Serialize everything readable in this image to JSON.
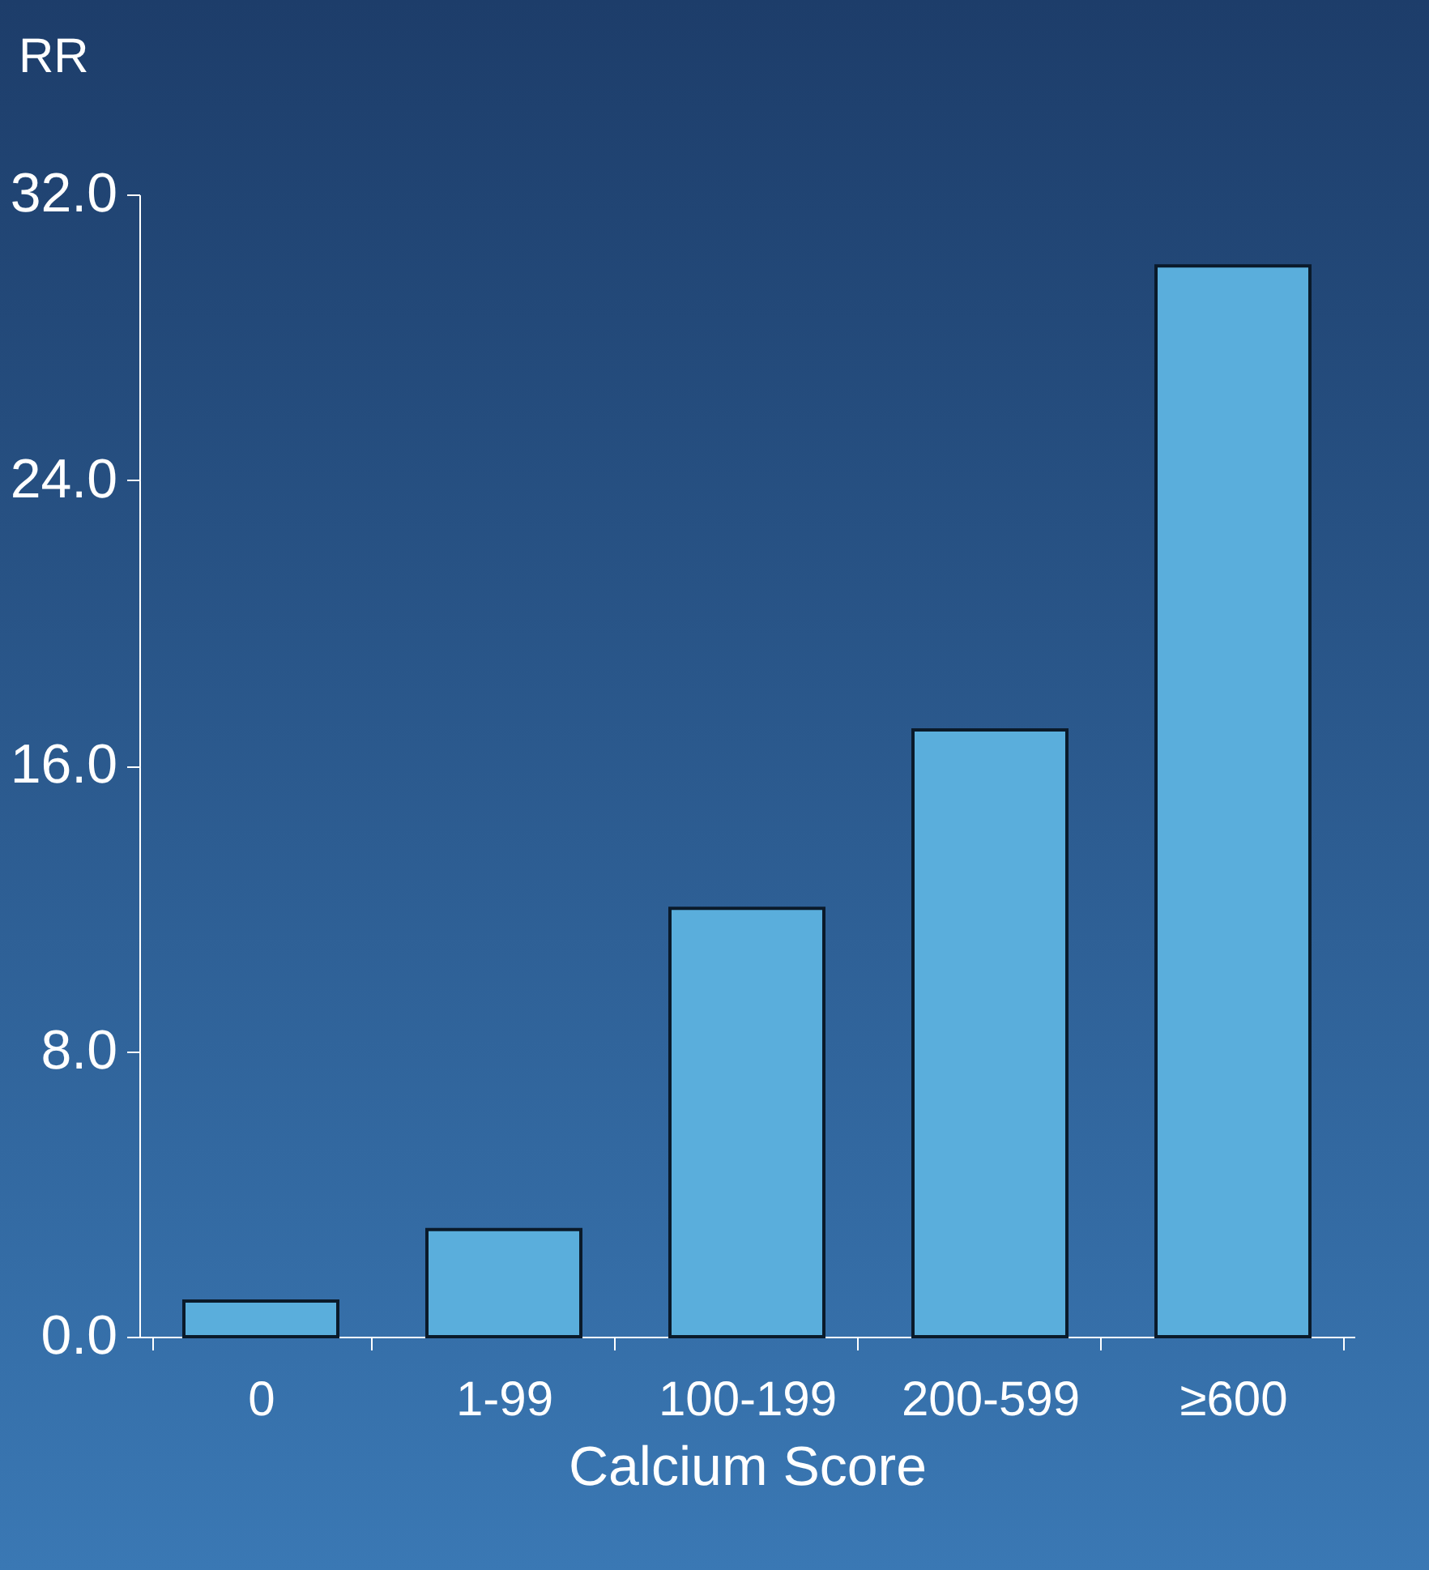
{
  "chart_data": {
    "type": "bar",
    "xlabel": "Calcium Score",
    "ylabel": "RR",
    "categories": [
      "0",
      "1-99",
      "100-199",
      "200-599",
      "≥600"
    ],
    "values": [
      1.0,
      3.0,
      12.0,
      17.0,
      30.0
    ],
    "color": "#5aaedc",
    "ylim": [
      0,
      32
    ],
    "yticks": [
      {
        "value": 0,
        "label": "0.0"
      },
      {
        "value": 8,
        "label": "8.0"
      },
      {
        "value": 16,
        "label": "16.0"
      },
      {
        "value": 24,
        "label": "24.0"
      },
      {
        "value": 32,
        "label": "32.0"
      }
    ],
    "grid": false
  }
}
